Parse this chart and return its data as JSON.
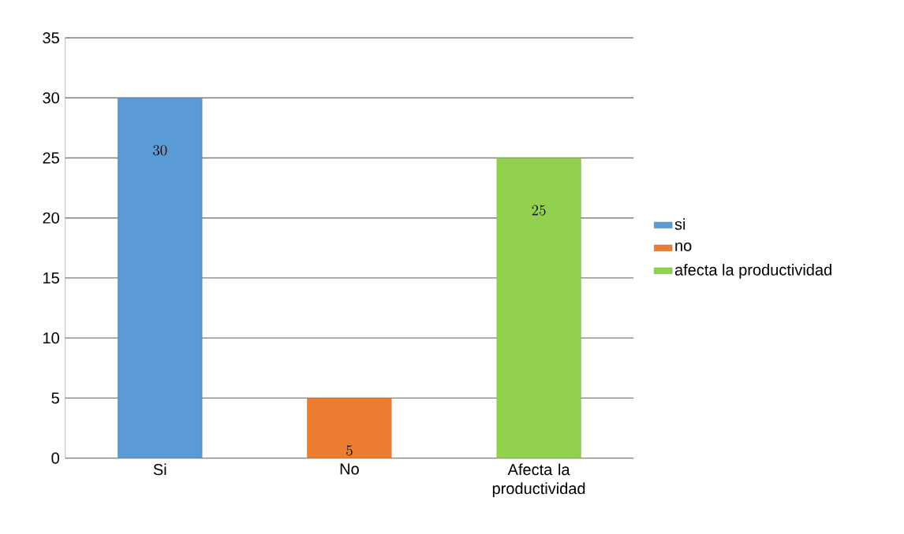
{
  "chart_data": {
    "type": "bar",
    "categories": [
      "Si",
      "No",
      "Afecta la productividad"
    ],
    "series": [
      {
        "name": "si",
        "color": "#5b9bd5",
        "values": [
          30,
          null,
          null
        ]
      },
      {
        "name": "no",
        "color": "#ed7d31",
        "values": [
          null,
          5,
          null
        ]
      },
      {
        "name": "afecta la productividad",
        "color": "#92d050",
        "values": [
          null,
          null,
          25
        ]
      }
    ],
    "ylim": [
      0,
      35
    ],
    "yticks": [
      0,
      5,
      10,
      15,
      20,
      25,
      30,
      35
    ],
    "grid": "y",
    "legend": "right",
    "data_labels": true
  }
}
